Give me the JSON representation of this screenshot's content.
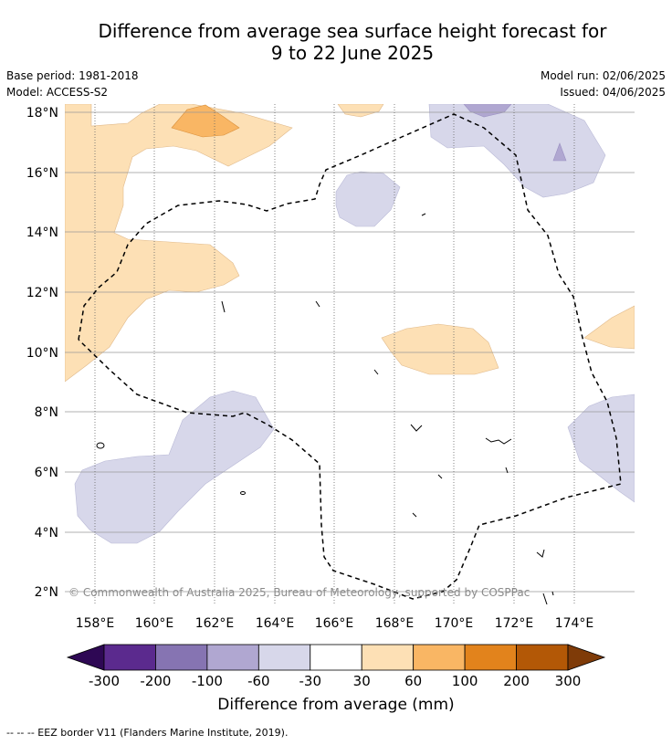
{
  "title": {
    "line1": "Difference from average sea surface height forecast for",
    "line2": "9 to 22 June 2025"
  },
  "meta": {
    "base_period": "Base period: 1981-2018",
    "model": "Model: ACCESS-S2",
    "model_run": "Model run: 02/06/2025",
    "issued": "Issued: 04/06/2025"
  },
  "map": {
    "lat_labels": [
      "18°N",
      "16°N",
      "14°N",
      "12°N",
      "10°N",
      "8°N",
      "6°N",
      "4°N",
      "2°N"
    ],
    "lon_labels": [
      "158°E",
      "160°E",
      "162°E",
      "164°E",
      "166°E",
      "168°E",
      "170°E",
      "172°E",
      "174°E"
    ],
    "copyright": "© Commonwealth of Australia 2025, Bureau of Meteorology, supported by COSPPac"
  },
  "colorbar": {
    "ticks": [
      "-300",
      "-200",
      "-100",
      "-60",
      "-30",
      "30",
      "60",
      "100",
      "200",
      "300"
    ],
    "colors": [
      "#2e0854",
      "#5b2a8e",
      "#8674b2",
      "#b0a7d1",
      "#d7d7ea",
      "#ffffff",
      "#fde0b5",
      "#f9b664",
      "#e2831c",
      "#b35806",
      "#7f3b08"
    ],
    "label": "Difference from average (mm)"
  },
  "footnote": "--  --  -- EEZ border V11 (Flanders Marine Institute, 2019)."
}
